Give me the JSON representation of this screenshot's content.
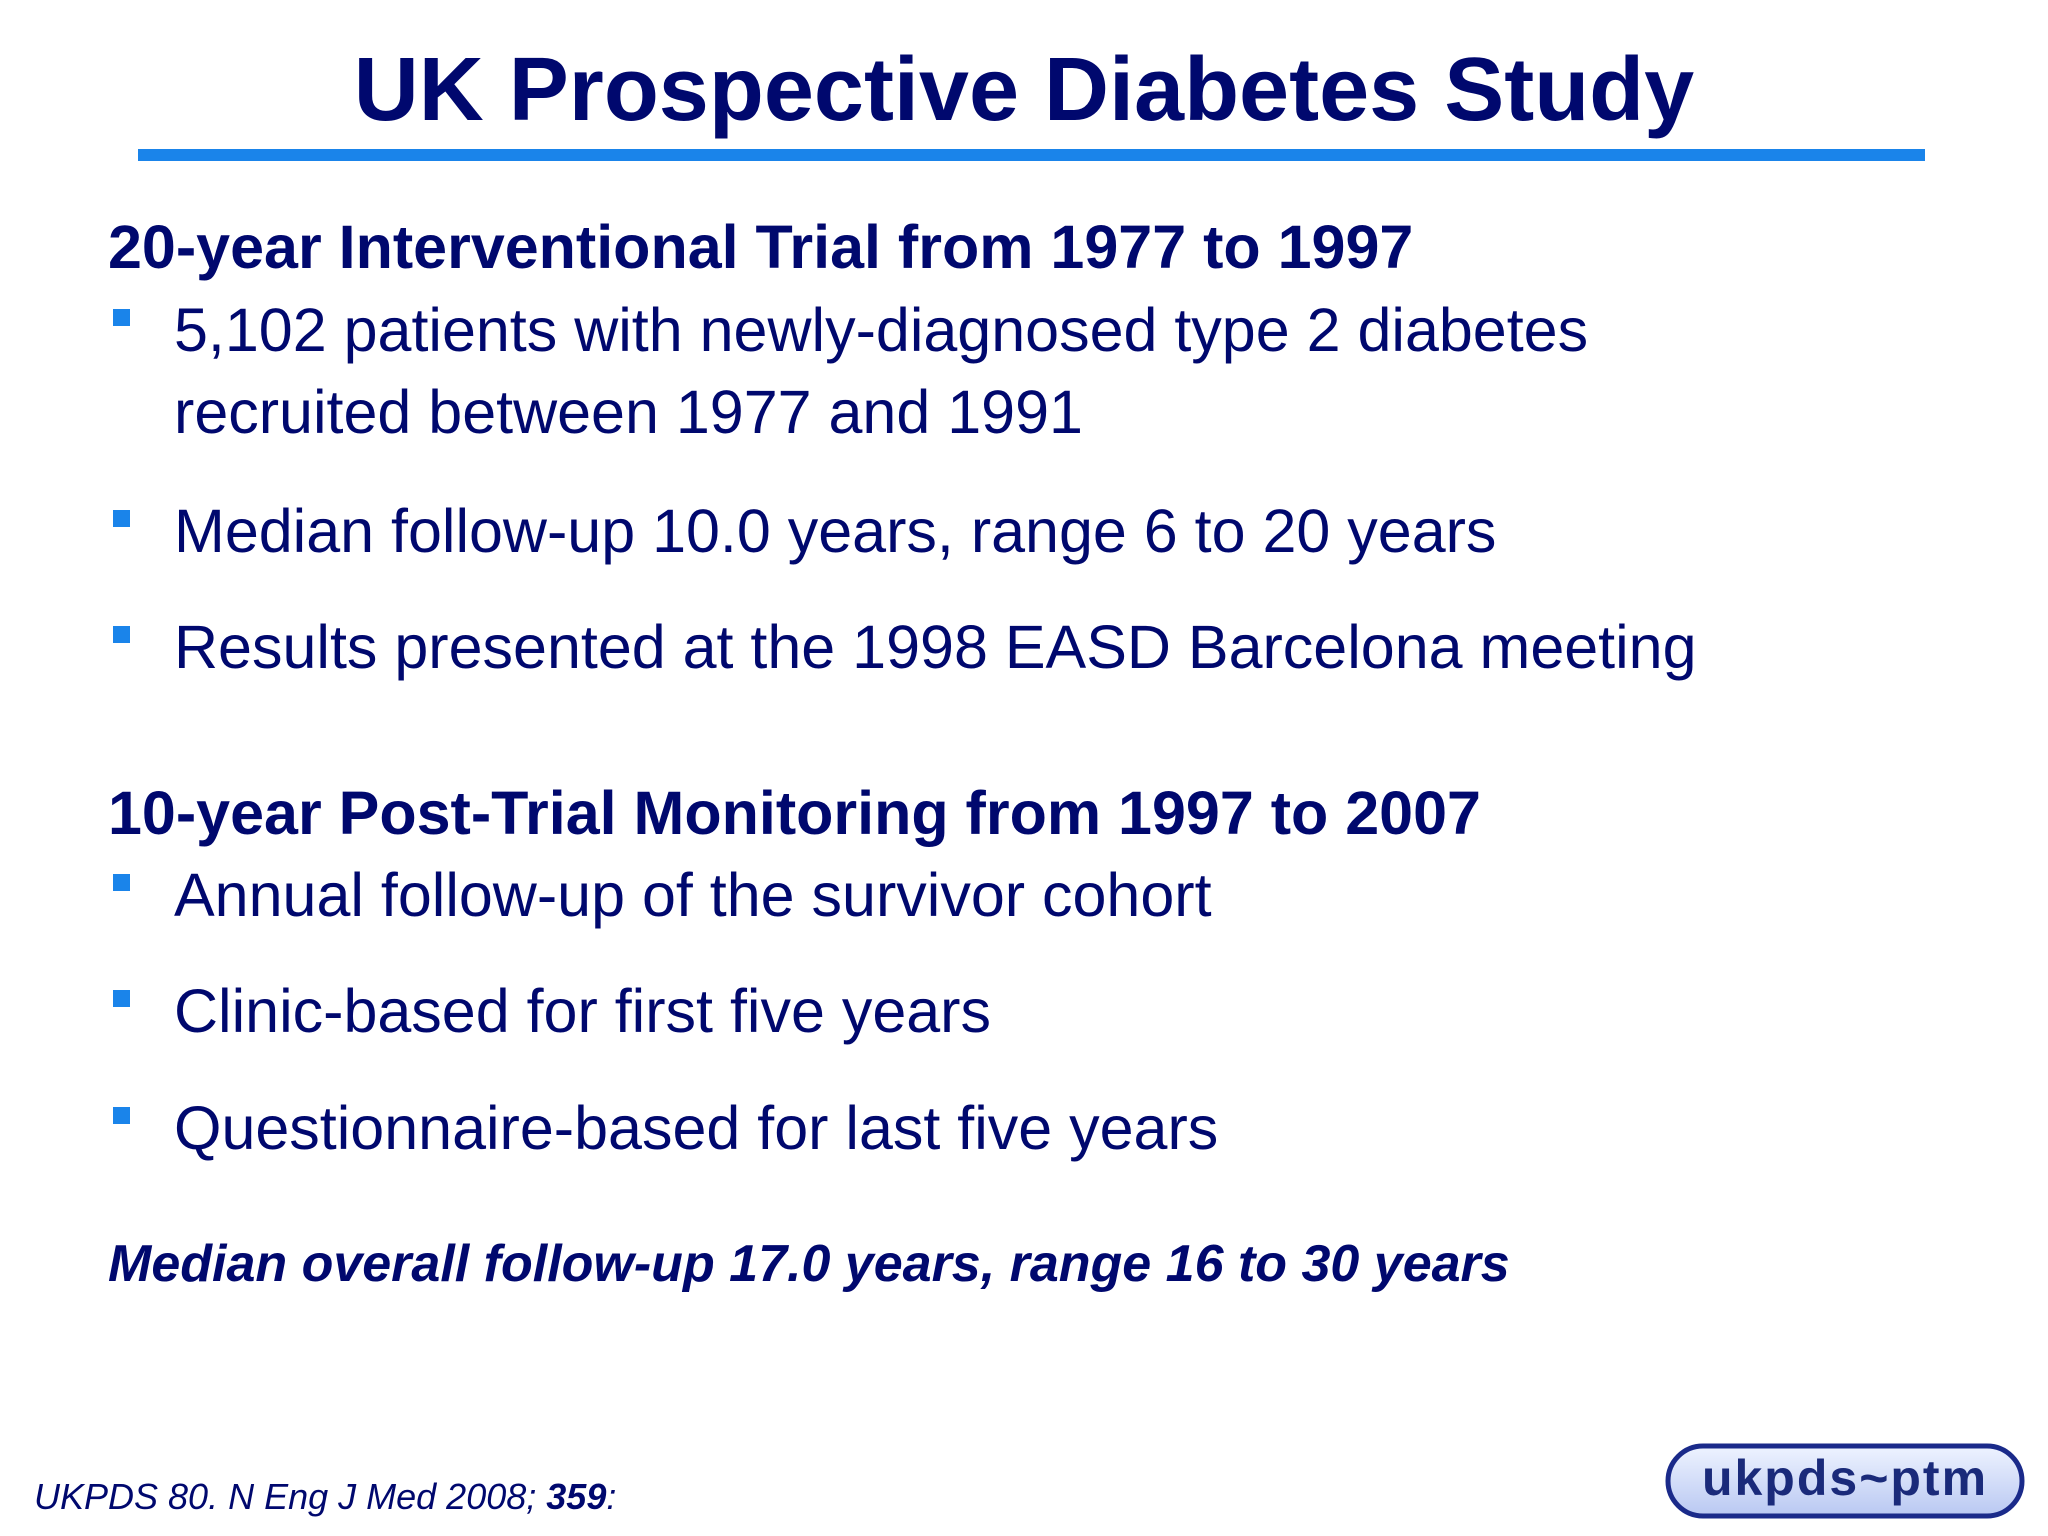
{
  "slide": {
    "title": "UK Prospective Diabetes Study",
    "colors": {
      "text": "#00086e",
      "accent": "#1a84ea"
    }
  },
  "sections": [
    {
      "heading": "20-year Interventional Trial from 1977 to 1997",
      "bullets": [
        {
          "line1": "5,102 patients with newly-diagnosed type 2 diabetes",
          "line2": "recruited between 1977 and 1991"
        },
        {
          "line1": "Median follow-up 10.0 years, range 6 to 20 years"
        },
        {
          "line1": "Results presented at the 1998 EASD Barcelona meeting"
        }
      ]
    },
    {
      "heading": "10-year Post-Trial Monitoring from 1997 to 2007",
      "bullets": [
        {
          "line1": "Annual follow-up of the survivor cohort"
        },
        {
          "line1": "Clinic-based for first five years"
        },
        {
          "line1": "Questionnaire-based for last five years"
        }
      ]
    }
  ],
  "summary": "Median overall follow-up 17.0 years, range 16 to 30 years",
  "citation": {
    "text": "UKPDS 80. N Eng J Med 2008;",
    "volume": "359",
    "suffix": ":"
  },
  "logo": {
    "text": "ukpds~ptm",
    "icon": "ukpds-ptm-logo"
  }
}
